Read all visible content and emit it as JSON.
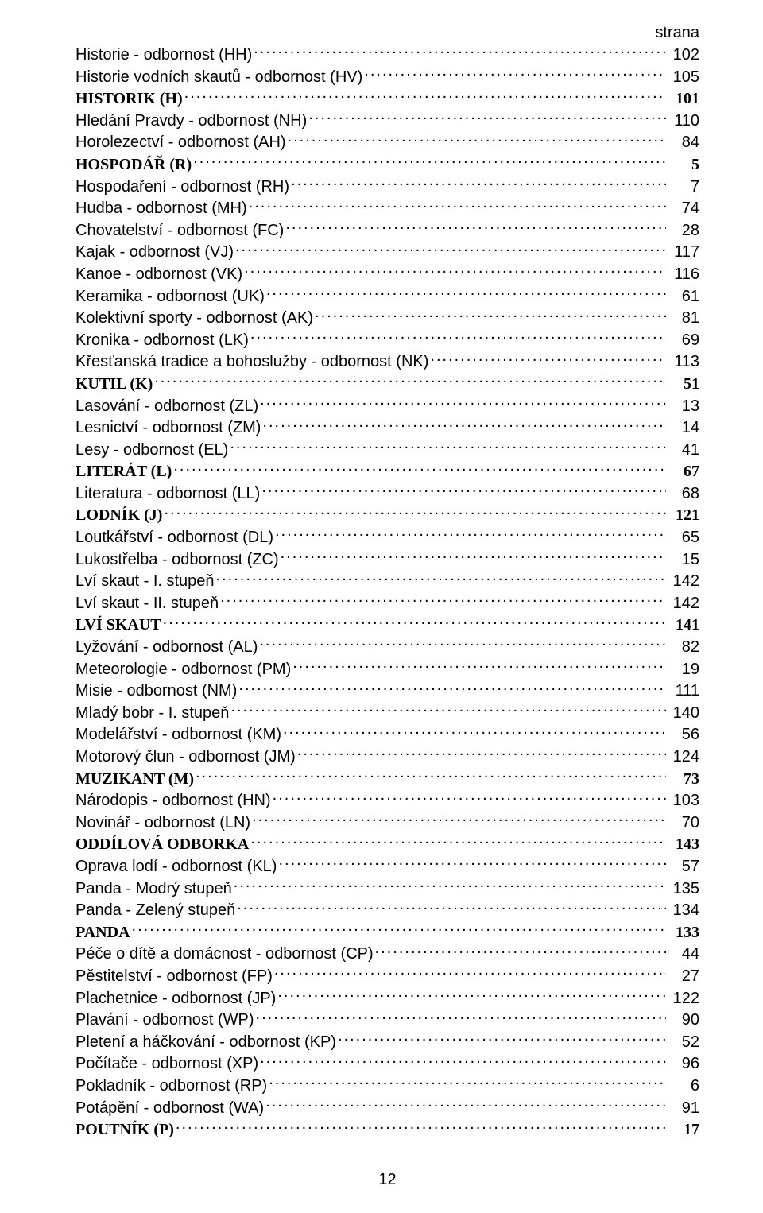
{
  "header": {
    "column_label": "strana"
  },
  "footer": {
    "page_number": "12"
  },
  "entries": [
    {
      "label": "Historie - odbornost (HH)",
      "page": "102",
      "bold": false
    },
    {
      "label": "Historie vodních skautů - odbornost (HV)",
      "page": "105",
      "bold": false
    },
    {
      "label": "HISTORIK (H)",
      "page": "101",
      "bold": true
    },
    {
      "label": "Hledání Pravdy - odbornost (NH)",
      "page": "110",
      "bold": false
    },
    {
      "label": "Horolezectví - odbornost (AH)",
      "page": "84",
      "bold": false
    },
    {
      "label": "HOSPODÁŘ (R)",
      "page": "5",
      "bold": true
    },
    {
      "label": "Hospodaření - odbornost (RH)",
      "page": "7",
      "bold": false
    },
    {
      "label": "Hudba - odbornost (MH)",
      "page": "74",
      "bold": false
    },
    {
      "label": "Chovatelství - odbornost (FC)",
      "page": "28",
      "bold": false
    },
    {
      "label": "Kajak - odbornost (VJ)",
      "page": "117",
      "bold": false
    },
    {
      "label": "Kanoe - odbornost (VK)",
      "page": "116",
      "bold": false
    },
    {
      "label": "Keramika - odbornost (UK)",
      "page": "61",
      "bold": false
    },
    {
      "label": "Kolektivní sporty - odbornost (AK)",
      "page": "81",
      "bold": false
    },
    {
      "label": "Kronika - odbornost (LK)",
      "page": "69",
      "bold": false
    },
    {
      "label": "Křesťanská tradice a bohoslužby - odbornost (NK)",
      "page": "113",
      "bold": false
    },
    {
      "label": "KUTIL (K)",
      "page": "51",
      "bold": true
    },
    {
      "label": "Lasování - odbornost (ZL)",
      "page": "13",
      "bold": false
    },
    {
      "label": "Lesnictví - odbornost (ZM)",
      "page": "14",
      "bold": false
    },
    {
      "label": "Lesy - odbornost (EL)",
      "page": "41",
      "bold": false
    },
    {
      "label": "LITERÁT (L)",
      "page": "67",
      "bold": true
    },
    {
      "label": "Literatura - odbornost (LL)",
      "page": "68",
      "bold": false
    },
    {
      "label": "LODNÍK (J)",
      "page": "121",
      "bold": true
    },
    {
      "label": "Loutkářství - odbornost (DL)",
      "page": "65",
      "bold": false
    },
    {
      "label": "Lukostřelba - odbornost (ZC)",
      "page": "15",
      "bold": false
    },
    {
      "label": "Lví skaut - I. stupeň",
      "page": "142",
      "bold": false
    },
    {
      "label": "Lví skaut - II. stupeň",
      "page": "142",
      "bold": false
    },
    {
      "label": "LVÍ SKAUT",
      "page": "141",
      "bold": true
    },
    {
      "label": "Lyžování - odbornost (AL)",
      "page": "82",
      "bold": false
    },
    {
      "label": "Meteorologie - odbornost (PM)",
      "page": "19",
      "bold": false
    },
    {
      "label": "Misie - odbornost (NM)",
      "page": "111",
      "bold": false
    },
    {
      "label": "Mladý bobr - I. stupeň",
      "page": "140",
      "bold": false
    },
    {
      "label": "Modelářství - odbornost (KM)",
      "page": "56",
      "bold": false
    },
    {
      "label": "Motorový člun - odbornost (JM)",
      "page": "124",
      "bold": false
    },
    {
      "label": "MUZIKANT (M)",
      "page": "73",
      "bold": true
    },
    {
      "label": "Národopis - odbornost (HN)",
      "page": "103",
      "bold": false
    },
    {
      "label": "Novinář - odbornost (LN)",
      "page": "70",
      "bold": false
    },
    {
      "label": "ODDÍLOVÁ ODBORKA",
      "page": "143",
      "bold": true
    },
    {
      "label": "Oprava lodí - odbornost (KL)",
      "page": "57",
      "bold": false
    },
    {
      "label": "Panda - Modrý stupeň",
      "page": "135",
      "bold": false
    },
    {
      "label": "Panda - Zelený stupeň",
      "page": "134",
      "bold": false
    },
    {
      "label": "PANDA",
      "page": "133",
      "bold": true
    },
    {
      "label": "Péče o dítě a domácnost - odbornost (CP)",
      "page": "44",
      "bold": false
    },
    {
      "label": "Pěstitelství - odbornost (FP)",
      "page": "27",
      "bold": false
    },
    {
      "label": "Plachetnice - odbornost (JP)",
      "page": "122",
      "bold": false
    },
    {
      "label": "Plavání - odbornost (WP)",
      "page": "90",
      "bold": false
    },
    {
      "label": "Pletení a háčkování - odbornost (KP)",
      "page": "52",
      "bold": false
    },
    {
      "label": "Počítače - odbornost (XP)",
      "page": "96",
      "bold": false
    },
    {
      "label": "Pokladník - odbornost (RP)",
      "page": "6",
      "bold": false
    },
    {
      "label": "Potápění - odbornost (WA)",
      "page": "91",
      "bold": false
    },
    {
      "label": "POUTNÍK (P)",
      "page": "17",
      "bold": true
    }
  ]
}
